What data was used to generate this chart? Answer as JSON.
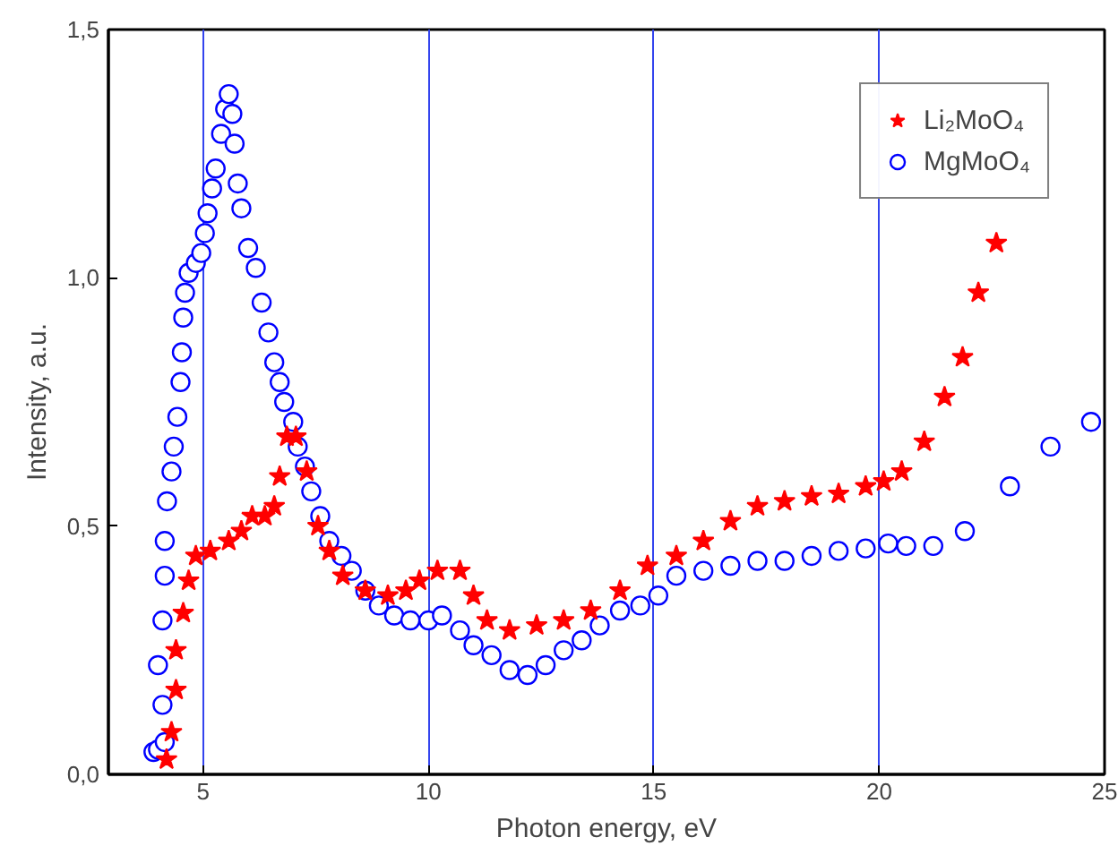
{
  "chart_data": {
    "type": "scatter",
    "xlabel": "Photon energy, eV",
    "ylabel": "Intensity, a.u.",
    "xlim": [
      2.9,
      25
    ],
    "xticks": [
      5,
      10,
      15,
      20,
      25
    ],
    "ylim": [
      0,
      1.5
    ],
    "yticks": [
      {
        "value": 0,
        "label": "0,0"
      },
      {
        "value": 0.5,
        "label": "0,5"
      },
      {
        "value": 1.0,
        "label": "1,0"
      },
      {
        "value": 1.5,
        "label": "1,5"
      }
    ],
    "grid": "x",
    "legend": "top right",
    "series": [
      {
        "name": "Li₂MoO₄",
        "color": "#ff0000",
        "marker": "star",
        "x": [
          4.19,
          4.3,
          4.4,
          4.4,
          4.56,
          4.68,
          4.84,
          5.16,
          5.57,
          5.85,
          6.09,
          6.37,
          6.58,
          6.7,
          6.86,
          7.06,
          7.3,
          7.55,
          7.8,
          8.1,
          8.6,
          9.1,
          9.5,
          9.8,
          10.2,
          10.7,
          11.0,
          11.3,
          11.8,
          12.4,
          13.0,
          13.6,
          14.25,
          14.86,
          15.5,
          16.1,
          16.7,
          17.3,
          17.9,
          18.5,
          19.1,
          19.7,
          20.1,
          20.5,
          21.0,
          21.45,
          21.85,
          22.2,
          22.6
        ],
        "values": [
          0.03,
          0.085,
          0.17,
          0.25,
          0.325,
          0.39,
          0.44,
          0.45,
          0.47,
          0.49,
          0.52,
          0.52,
          0.54,
          0.6,
          0.68,
          0.68,
          0.61,
          0.5,
          0.45,
          0.4,
          0.37,
          0.36,
          0.37,
          0.39,
          0.41,
          0.41,
          0.36,
          0.31,
          0.29,
          0.3,
          0.31,
          0.33,
          0.37,
          0.42,
          0.44,
          0.47,
          0.51,
          0.54,
          0.55,
          0.56,
          0.565,
          0.58,
          0.59,
          0.61,
          0.67,
          0.76,
          0.84,
          0.97,
          1.07
        ]
      },
      {
        "name": "MgMoO₄",
        "color": "#0000ff",
        "marker": "circle",
        "x": [
          3.9,
          4.0,
          4.15,
          4.1,
          4.0,
          4.1,
          4.15,
          4.15,
          4.2,
          4.3,
          4.35,
          4.43,
          4.5,
          4.53,
          4.56,
          4.6,
          4.68,
          4.84,
          4.96,
          5.04,
          5.1,
          5.2,
          5.28,
          5.4,
          5.49,
          5.57,
          5.65,
          5.7,
          5.77,
          5.85,
          6.0,
          6.17,
          6.3,
          6.45,
          6.58,
          6.7,
          6.8,
          7.0,
          7.1,
          7.26,
          7.4,
          7.6,
          7.8,
          8.07,
          8.3,
          8.6,
          8.9,
          9.24,
          9.6,
          10.0,
          10.3,
          10.7,
          11.0,
          11.4,
          11.8,
          12.2,
          12.6,
          13.0,
          13.4,
          13.8,
          14.25,
          14.7,
          15.1,
          15.5,
          16.1,
          16.7,
          17.3,
          17.9,
          18.5,
          19.1,
          19.7,
          20.2,
          20.6,
          21.2,
          21.9,
          22.9,
          23.8,
          24.7
        ],
        "values": [
          0.045,
          0.05,
          0.065,
          0.14,
          0.22,
          0.31,
          0.4,
          0.47,
          0.55,
          0.61,
          0.66,
          0.72,
          0.79,
          0.85,
          0.92,
          0.97,
          1.01,
          1.03,
          1.05,
          1.09,
          1.13,
          1.18,
          1.22,
          1.29,
          1.34,
          1.37,
          1.33,
          1.27,
          1.19,
          1.14,
          1.06,
          1.02,
          0.95,
          0.89,
          0.83,
          0.79,
          0.75,
          0.71,
          0.66,
          0.62,
          0.57,
          0.52,
          0.47,
          0.44,
          0.41,
          0.37,
          0.34,
          0.32,
          0.31,
          0.31,
          0.32,
          0.29,
          0.26,
          0.24,
          0.21,
          0.2,
          0.22,
          0.25,
          0.27,
          0.3,
          0.33,
          0.34,
          0.36,
          0.4,
          0.41,
          0.42,
          0.43,
          0.43,
          0.44,
          0.45,
          0.455,
          0.465,
          0.46,
          0.46,
          0.49,
          0.58,
          0.66,
          0.71
        ]
      }
    ]
  }
}
